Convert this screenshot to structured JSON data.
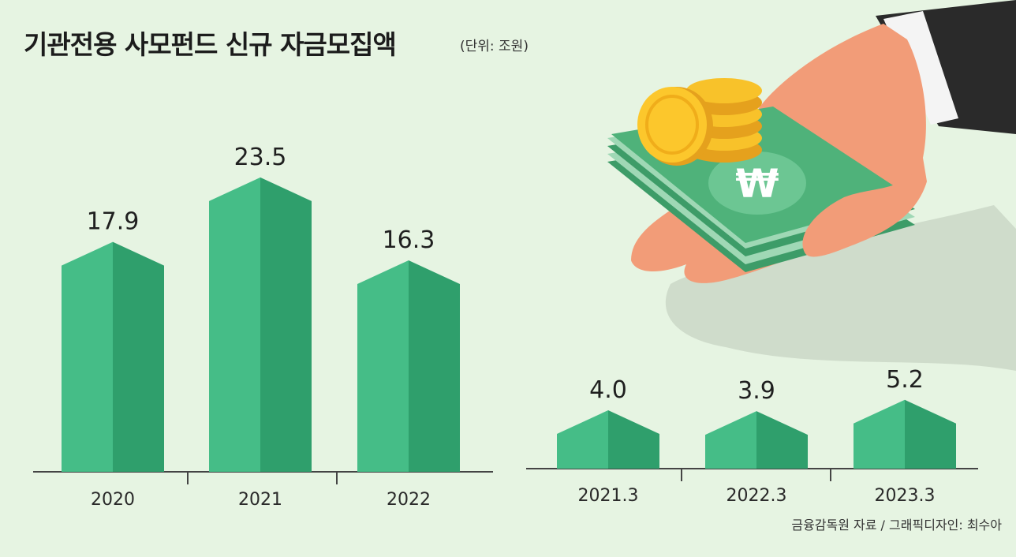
{
  "title": "기관전용 사모펀드 신규 자금모집액",
  "unit": "(단위: 조원)",
  "source": "금융감독원 자료 / 그래픽디자인: 최수아",
  "colors": {
    "bar_light": "#45bd87",
    "bar_dark": "#2f9f6c",
    "background": "#e6f4e2"
  },
  "chart_data": [
    {
      "type": "bar",
      "categories": [
        "2020",
        "2021",
        "2022"
      ],
      "values": [
        17.9,
        23.5,
        16.3
      ],
      "value_labels": [
        "17.9",
        "23.5",
        "16.3"
      ]
    },
    {
      "type": "bar",
      "categories": [
        "2021.3",
        "2022.3",
        "2023.3"
      ],
      "values": [
        4.0,
        3.9,
        5.2
      ],
      "value_labels": [
        "4.0",
        "3.9",
        "5.2"
      ]
    }
  ]
}
